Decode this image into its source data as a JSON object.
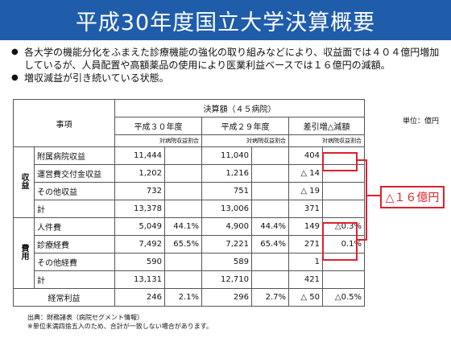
{
  "title": "平成30年度国立大学決算概要",
  "bullets": [
    "各大学の機能分化をふまえた診療機能の強化の取り組みなどにより、収益面では４０４億円増加しているが、人員配置や高額薬品の使用により医業利益ベースでは１６億円の減額。",
    "増収減益が引き続いている状態。"
  ],
  "unit": "単位：億円",
  "table": {
    "item_header": "事項",
    "settlement_header": "決算額（４５病院）",
    "col_h30": "平成３０年度",
    "col_h29": "平成２９年度",
    "col_diff": "差引増△減額",
    "ratio_label": "対病院収益割合",
    "section_revenue": "収益",
    "section_expense": "費用",
    "rows": [
      {
        "label": "附属病院収益",
        "h30": "11,444",
        "h30r": "",
        "h29": "11,040",
        "h29r": "",
        "diff": "404",
        "diffr": ""
      },
      {
        "label": "運営費交付金収益",
        "h30": "1,202",
        "h30r": "",
        "h29": "1,216",
        "h29r": "",
        "diff": "△ 14",
        "diffr": ""
      },
      {
        "label": "その他収益",
        "h30": "732",
        "h30r": "",
        "h29": "751",
        "h29r": "",
        "diff": "△ 19",
        "diffr": ""
      },
      {
        "label": "計",
        "h30": "13,378",
        "h30r": "",
        "h29": "13,006",
        "h29r": "",
        "diff": "371",
        "diffr": ""
      },
      {
        "label": "人件費",
        "h30": "5,049",
        "h30r": "44.1%",
        "h29": "4,900",
        "h29r": "44.4%",
        "diff": "149",
        "diffr": "△0.3%"
      },
      {
        "label": "診療経費",
        "h30": "7,492",
        "h30r": "65.5%",
        "h29": "7,221",
        "h29r": "65.4%",
        "diff": "271",
        "diffr": "0.1%"
      },
      {
        "label": "その他経費",
        "h30": "590",
        "h30r": "",
        "h29": "589",
        "h29r": "",
        "diff": "1",
        "diffr": ""
      },
      {
        "label": "計",
        "h30": "13,131",
        "h30r": "",
        "h29": "12,710",
        "h29r": "",
        "diff": "421",
        "diffr": ""
      },
      {
        "label": "経常利益",
        "h30": "246",
        "h30r": "2.1%",
        "h29": "296",
        "h29r": "2.7%",
        "diff": "△ 50",
        "diffr": "△0.5%"
      }
    ]
  },
  "callout": "△１６億円",
  "footer": [
    "出典：財務諸表（病院セグメント情報）",
    "※単位未満四捨五入のため、合計が一致しない場合があります。"
  ],
  "colors": {
    "header_bg": "#1f5dab",
    "highlight": "#e0202c"
  }
}
